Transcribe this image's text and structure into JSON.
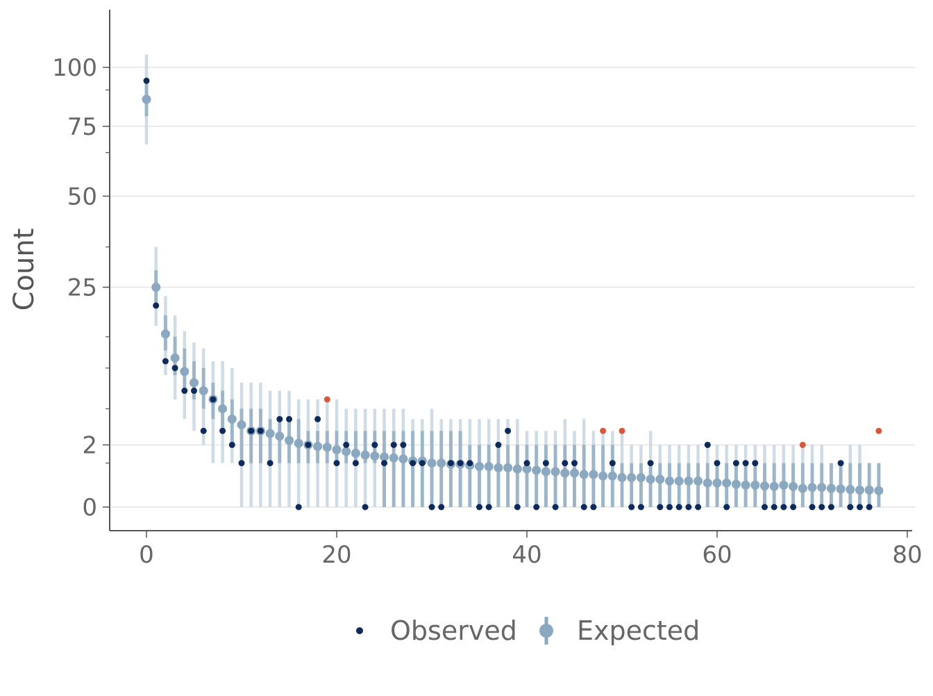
{
  "chart_data": {
    "type": "scatter",
    "title": "",
    "xlabel": "",
    "ylabel": "Count",
    "x_range": [
      -4,
      80
    ],
    "y_scale": "sqrt",
    "y_range": [
      -0.5,
      112
    ],
    "x_ticks": [
      0,
      20,
      40,
      60,
      80
    ],
    "y_ticks": [
      0,
      2,
      25,
      50,
      75,
      100
    ],
    "y_minor_ticks": [
      1,
      5,
      10,
      15,
      35,
      65,
      90
    ],
    "grid": "horizontal",
    "legend": {
      "position": "bottom",
      "entries": [
        {
          "label": "Observed",
          "color": "#0d2a5c"
        },
        {
          "label": "Expected",
          "color": "#8aa8c0"
        }
      ]
    },
    "colors": {
      "observed": "#0d2a5c",
      "observed_outlier": "#d9583b",
      "expected": "#8aa8c0",
      "expected_interval": "#c7d6e2",
      "grid": "#e4e4e4",
      "axis": "#555555"
    },
    "series": [
      {
        "name": "Observed",
        "x": [
          0,
          1,
          2,
          3,
          4,
          5,
          6,
          7,
          8,
          9,
          10,
          11,
          12,
          13,
          14,
          15,
          16,
          17,
          18,
          19,
          20,
          21,
          22,
          23,
          24,
          25,
          26,
          27,
          28,
          29,
          30,
          31,
          32,
          33,
          34,
          35,
          36,
          37,
          38,
          39,
          40,
          41,
          42,
          43,
          44,
          45,
          46,
          47,
          48,
          49,
          50,
          51,
          52,
          53,
          54,
          55,
          56,
          57,
          58,
          59,
          60,
          61,
          62,
          63,
          64,
          65,
          66,
          67,
          68,
          69,
          70,
          71,
          72,
          73,
          74,
          75,
          76,
          77
        ],
        "y": [
          94,
          21,
          11,
          10,
          7,
          7,
          3,
          6,
          3,
          2,
          1,
          3,
          3,
          1,
          4,
          4,
          0,
          2,
          4,
          6,
          1,
          2,
          1,
          0,
          2,
          1,
          2,
          2,
          1,
          1,
          0,
          0,
          1,
          1,
          1,
          0,
          0,
          2,
          3,
          0,
          1,
          0,
          1,
          0,
          1,
          1,
          0,
          0,
          3,
          1,
          3,
          0,
          0,
          1,
          0,
          0,
          0,
          0,
          0,
          2,
          1,
          0,
          1,
          1,
          1,
          0,
          0,
          0,
          0,
          2,
          0,
          0,
          0,
          1,
          0,
          0,
          0,
          3
        ],
        "outliers": [
          19,
          48,
          50,
          69,
          77
        ]
      },
      {
        "name": "Expected",
        "x": [
          0,
          1,
          2,
          3,
          4,
          5,
          6,
          7,
          8,
          9,
          10,
          11,
          12,
          13,
          14,
          15,
          16,
          17,
          18,
          19,
          20,
          21,
          22,
          23,
          24,
          25,
          26,
          27,
          28,
          29,
          30,
          31,
          32,
          33,
          34,
          35,
          36,
          37,
          38,
          39,
          40,
          41,
          42,
          43,
          44,
          45,
          46,
          47,
          48,
          49,
          50,
          51,
          52,
          53,
          54,
          55,
          56,
          57,
          58,
          59,
          60,
          61,
          62,
          63,
          64,
          65,
          66,
          67,
          68,
          69,
          70,
          71,
          72,
          73,
          74,
          75,
          76,
          77
        ],
        "y": [
          86,
          25,
          15.5,
          11.5,
          9.5,
          8,
          7,
          6,
          5,
          4,
          3.5,
          3,
          3,
          2.8,
          2.6,
          2.3,
          2.1,
          2.0,
          1.9,
          1.85,
          1.7,
          1.6,
          1.5,
          1.4,
          1.35,
          1.3,
          1.25,
          1.2,
          1.1,
          1.1,
          1.0,
          1.0,
          0.95,
          0.95,
          0.9,
          0.85,
          0.85,
          0.8,
          0.8,
          0.75,
          0.75,
          0.7,
          0.65,
          0.65,
          0.6,
          0.6,
          0.55,
          0.55,
          0.5,
          0.5,
          0.45,
          0.45,
          0.45,
          0.4,
          0.4,
          0.35,
          0.35,
          0.35,
          0.35,
          0.3,
          0.3,
          0.3,
          0.27,
          0.25,
          0.25,
          0.23,
          0.22,
          0.25,
          0.22,
          0.18,
          0.2,
          0.2,
          0.18,
          0.17,
          0.16,
          0.15,
          0.15,
          0.14
        ],
        "lower_80": [
          79,
          21,
          12.7,
          9,
          7,
          6,
          5,
          4,
          3,
          2,
          1,
          1,
          1,
          1,
          1,
          1,
          1,
          1,
          1,
          1,
          1,
          1,
          1,
          1,
          1,
          0,
          0,
          0,
          0,
          0,
          0,
          0,
          0,
          0,
          0,
          0,
          0,
          0,
          0,
          0,
          0,
          0,
          0,
          0,
          0,
          0,
          0,
          0,
          0,
          0,
          0,
          0,
          0,
          0,
          0,
          0,
          0,
          0,
          0,
          0,
          0,
          0,
          0,
          0,
          0,
          0,
          0,
          0,
          0,
          0,
          0,
          0,
          0,
          0,
          0,
          0,
          0,
          0
        ],
        "upper_80": [
          93,
          29,
          19,
          15,
          13,
          11,
          10,
          8,
          7,
          6,
          5,
          5,
          5,
          4,
          4,
          4,
          4,
          3,
          3,
          3,
          3,
          3,
          3,
          3,
          3,
          3,
          3,
          3,
          3,
          3,
          3,
          3,
          3,
          3,
          2,
          2,
          2,
          2,
          2,
          2,
          2,
          2,
          2,
          2,
          2,
          2,
          2,
          2,
          2,
          2,
          1,
          1,
          1,
          1,
          1,
          1,
          1,
          1,
          1,
          1,
          1,
          1,
          1,
          1,
          1,
          1,
          1,
          1,
          1,
          1,
          1,
          1,
          1,
          1,
          1,
          1,
          1,
          1
        ],
        "lower_95": [
          68,
          17,
          9,
          6,
          4,
          3,
          2,
          1,
          1,
          1,
          0,
          0,
          0,
          0,
          0,
          0,
          0,
          0,
          0,
          0,
          0,
          0,
          0,
          0,
          0,
          0,
          0,
          0,
          0,
          0,
          0,
          0,
          0,
          0,
          0,
          0,
          0,
          0,
          0,
          0,
          0,
          0,
          0,
          0,
          0,
          0,
          0,
          0,
          0,
          0,
          0,
          0,
          0,
          0,
          0,
          0,
          0,
          0,
          0,
          0,
          0,
          0,
          0,
          0,
          0,
          0,
          0,
          0,
          0,
          0,
          0,
          0,
          0,
          0,
          0,
          0,
          0,
          0
        ],
        "upper_95": [
          106,
          35,
          23,
          19,
          16,
          14,
          13,
          11,
          11,
          10,
          8,
          8,
          8,
          7,
          7,
          7,
          6,
          6,
          6,
          6,
          6,
          5,
          5,
          5,
          5,
          5,
          5,
          5,
          4,
          4,
          5,
          4,
          4,
          4,
          4,
          4,
          4,
          4,
          4,
          4,
          3,
          3,
          3,
          3,
          4,
          3,
          4,
          3,
          3,
          3,
          3,
          2,
          2,
          3,
          2,
          2,
          2,
          2,
          2,
          2,
          2,
          2,
          2,
          2,
          2,
          2,
          2,
          2,
          2,
          2,
          2,
          2,
          1,
          1,
          2,
          2,
          1,
          1
        ]
      }
    ]
  }
}
